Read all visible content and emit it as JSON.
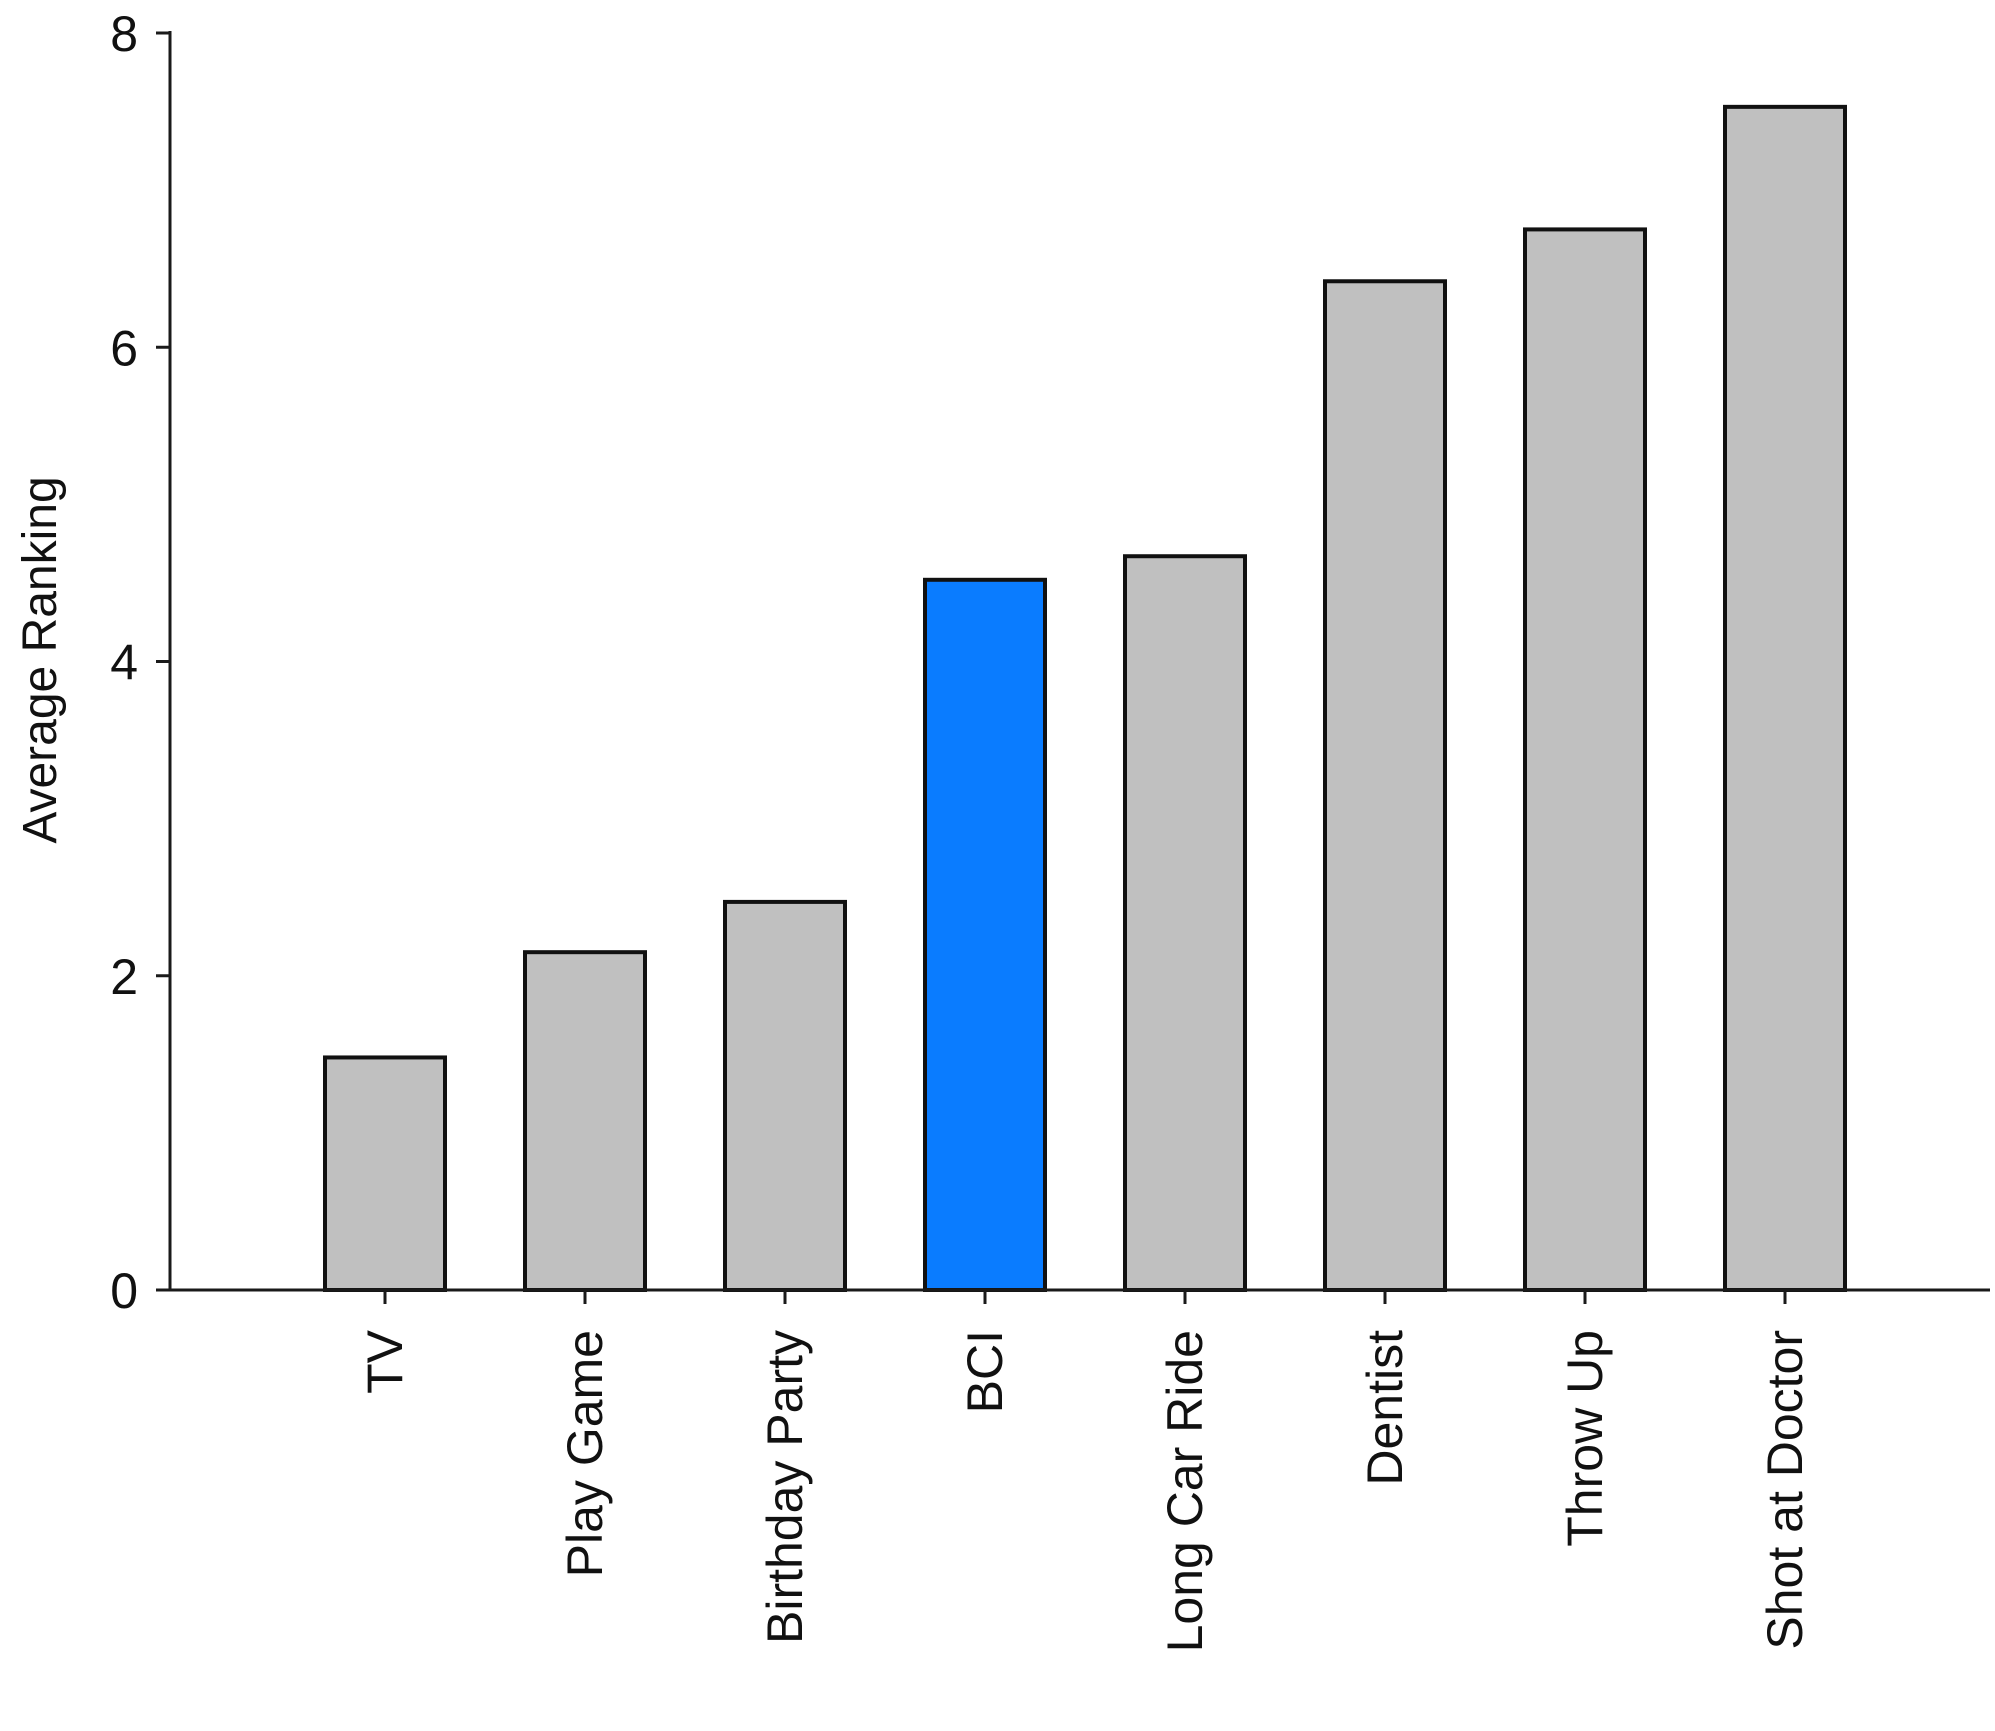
{
  "chart_data": {
    "type": "bar",
    "title": "",
    "xlabel": "",
    "ylabel": "Average Ranking",
    "ylim": [
      0,
      8
    ],
    "yticks": [
      0,
      2,
      4,
      6,
      8
    ],
    "ytick_labels": [
      "0",
      "2",
      "4",
      "6",
      "8"
    ],
    "categories": [
      "TV",
      "Play Game",
      "Birthday Party",
      "BCI",
      "Long Car Ride",
      "Dentist",
      "Throw Up",
      "Shot at Doctor"
    ],
    "values": [
      1.48,
      2.15,
      2.47,
      4.52,
      4.67,
      6.42,
      6.75,
      7.53
    ],
    "bar_colors": [
      "#c0c0c0",
      "#c0c0c0",
      "#c0c0c0",
      "#0a7cff",
      "#c0c0c0",
      "#c0c0c0",
      "#c0c0c0",
      "#c0c0c0"
    ],
    "bar_edge_color": "#111111",
    "grid": false,
    "legend": "none"
  }
}
